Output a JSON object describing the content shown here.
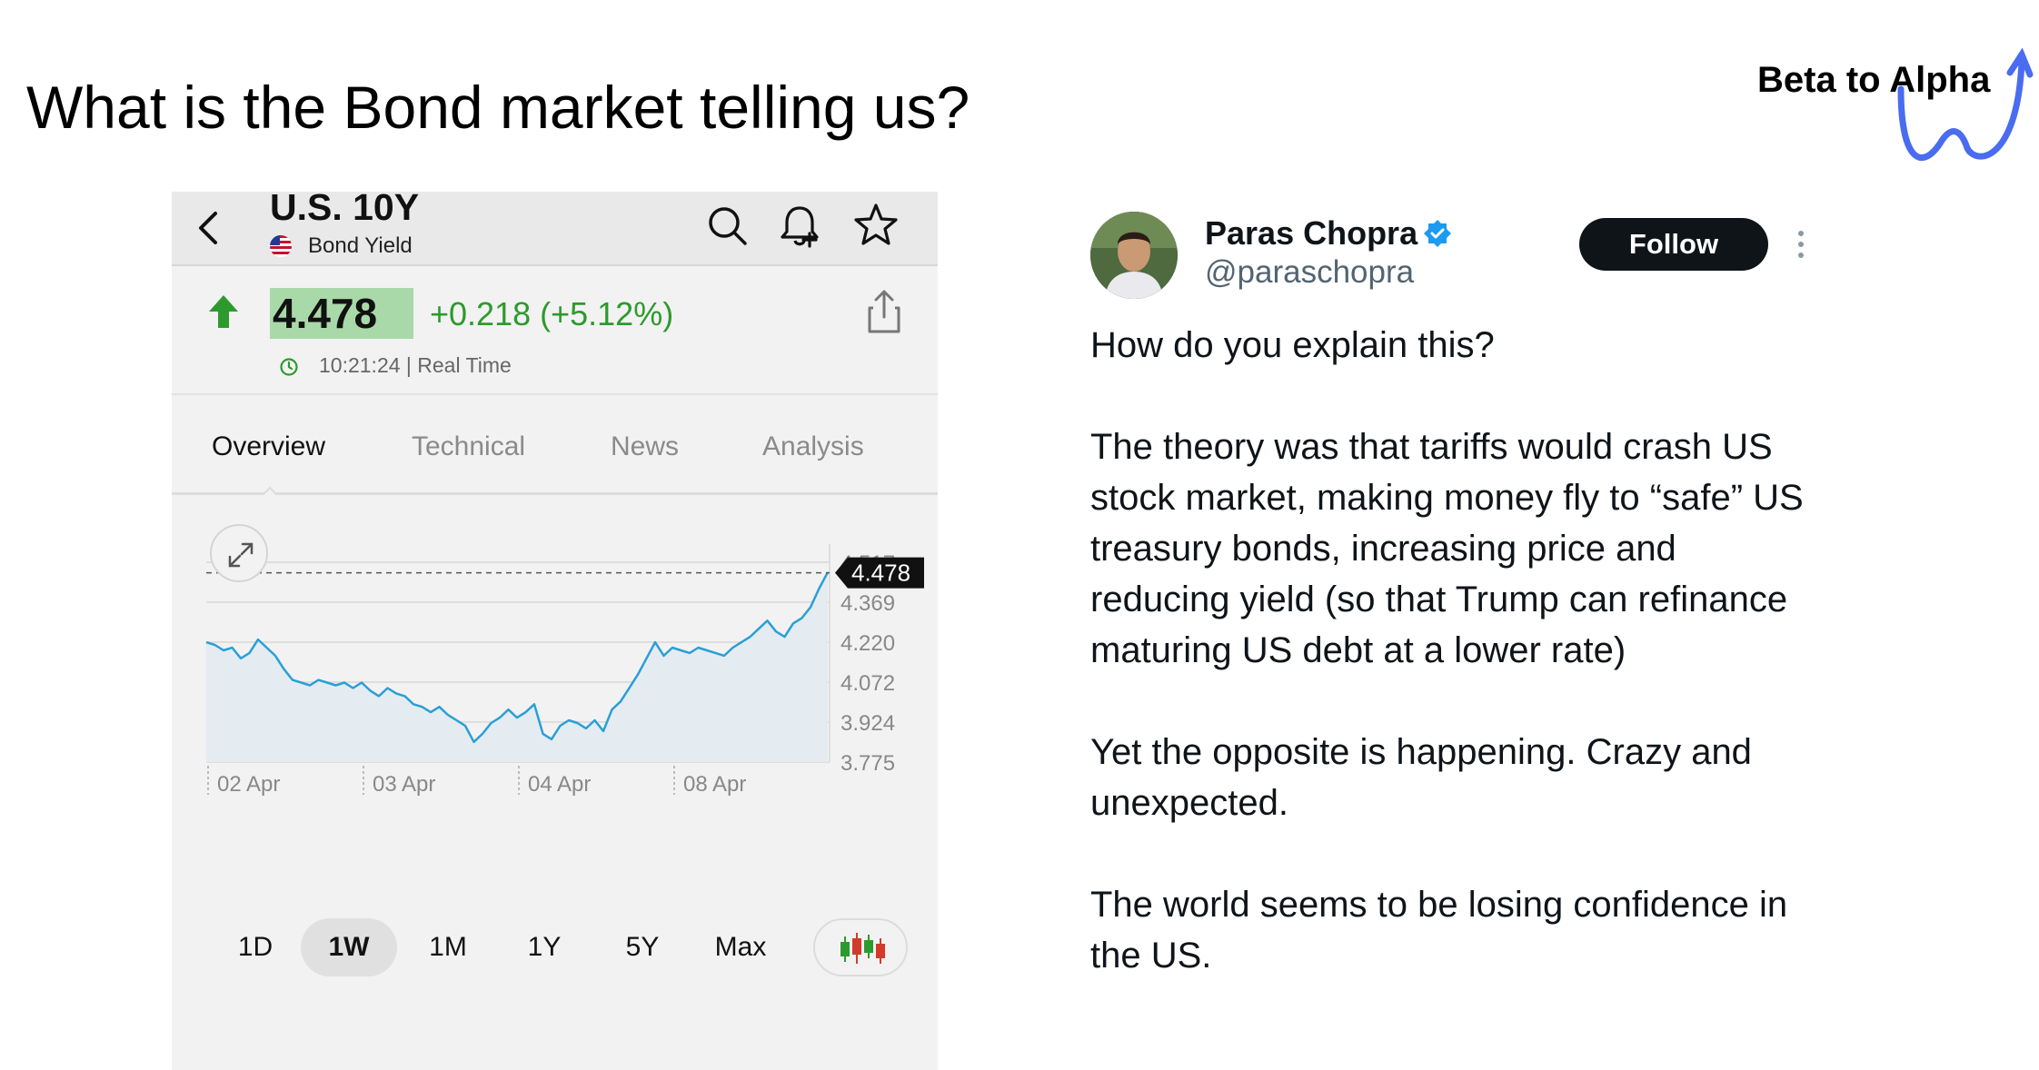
{
  "slide": {
    "title": "What is the Bond market telling us?",
    "brand": "Beta to Alpha",
    "brand_color": "#4a6cf0"
  },
  "app": {
    "header": {
      "title": "U.S. 10Y",
      "subtitle": "Bond Yield",
      "icons": [
        "back-icon",
        "flag-icon",
        "search-icon",
        "bell-plus-icon",
        "star-icon"
      ]
    },
    "quote": {
      "price": "4.478",
      "change": "+0.218 (+5.12%)",
      "timestamp": "10:21:24 | Real Time",
      "up_color": "#2d9a2d"
    },
    "tabs": [
      {
        "label": "Overview",
        "active": true
      },
      {
        "label": "Technical",
        "active": false
      },
      {
        "label": "News",
        "active": false
      },
      {
        "label": "Analysis",
        "active": false
      }
    ],
    "ranges": [
      {
        "label": "1D",
        "active": false
      },
      {
        "label": "1W",
        "active": true
      },
      {
        "label": "1M",
        "active": false
      },
      {
        "label": "1Y",
        "active": false
      },
      {
        "label": "5Y",
        "active": false
      },
      {
        "label": "Max",
        "active": false
      }
    ]
  },
  "chart_data": {
    "type": "line",
    "y_ticks": [
      "4.517",
      "4.369",
      "4.220",
      "4.072",
      "3.924",
      "3.775"
    ],
    "x_ticks": [
      "02 Apr",
      "03 Apr",
      "04 Apr",
      "08 Apr"
    ],
    "ylim": [
      3.775,
      4.517
    ],
    "current_label": "4.478",
    "current_value": 4.478,
    "line_color": "#2a9fd6",
    "grid": true,
    "series": [
      {
        "values": [
          4.22,
          4.21,
          4.19,
          4.2,
          4.16,
          4.18,
          4.23,
          4.2,
          4.17,
          4.12,
          4.08,
          4.07,
          4.06,
          4.08,
          4.07,
          4.06,
          4.07,
          4.05,
          4.07,
          4.04,
          4.02,
          4.05,
          4.03,
          4.02,
          3.99,
          3.98,
          3.96,
          3.98,
          3.95,
          3.93,
          3.91,
          3.85,
          3.88,
          3.92,
          3.94,
          3.97,
          3.94,
          3.96,
          3.99,
          3.88,
          3.86,
          3.91,
          3.93,
          3.92,
          3.9,
          3.93,
          3.89,
          3.97,
          4.0,
          4.05,
          4.1,
          4.16,
          4.22,
          4.17,
          4.2,
          4.19,
          4.18,
          4.2,
          4.19,
          4.18,
          4.17,
          4.2,
          4.22,
          4.24,
          4.27,
          4.3,
          4.26,
          4.24,
          4.29,
          4.31,
          4.35,
          4.42,
          4.48
        ]
      }
    ]
  },
  "tweet": {
    "author": "Paras Chopra",
    "handle": "@paraschopra",
    "follow_label": "Follow",
    "verified_color": "#1d9bf0",
    "paragraphs": [
      "How do you explain this?",
      "The theory was that tariffs would crash US stock market, making money fly to “safe” US treasury bonds, increasing price and reducing yield (so that Trump can refinance maturing US debt at a lower rate)",
      "Yet the opposite is happening. Crazy and unexpected.",
      "The world seems to be losing confidence in the US."
    ]
  }
}
